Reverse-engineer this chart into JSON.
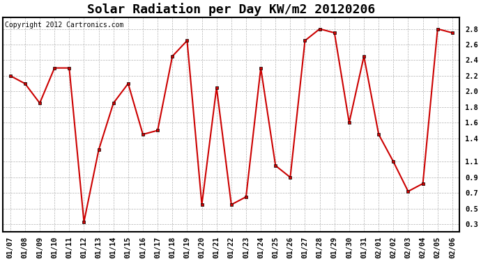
{
  "title": "Solar Radiation per Day KW/m2 20120206",
  "copyright": "Copyright 2012 Cartronics.com",
  "dates": [
    "01/07",
    "01/08",
    "01/09",
    "01/10",
    "01/11",
    "01/12",
    "01/13",
    "01/14",
    "01/15",
    "01/16",
    "01/17",
    "01/18",
    "01/19",
    "01/20",
    "01/21",
    "01/22",
    "01/23",
    "01/24",
    "01/25",
    "01/26",
    "01/27",
    "01/28",
    "01/29",
    "01/30",
    "01/31",
    "02/01",
    "02/02",
    "02/03",
    "02/04",
    "02/05",
    "02/06"
  ],
  "values": [
    2.2,
    2.1,
    1.85,
    2.3,
    2.3,
    0.33,
    1.25,
    1.85,
    2.1,
    1.45,
    1.5,
    2.45,
    2.65,
    0.55,
    2.05,
    0.55,
    0.65,
    2.3,
    1.05,
    0.9,
    2.65,
    2.8,
    2.75,
    1.6,
    2.45,
    1.45,
    1.1,
    0.72,
    0.82,
    2.8,
    2.75
  ],
  "line_color": "#cc0000",
  "marker": "s",
  "marker_size": 3,
  "bg_color": "#ffffff",
  "grid_color": "#aaaaaa",
  "yticks": [
    0.3,
    0.5,
    0.7,
    0.9,
    1.1,
    1.4,
    1.6,
    1.8,
    2.0,
    2.2,
    2.4,
    2.6,
    2.8
  ],
  "ylim": [
    0.2,
    2.95
  ],
  "title_fontsize": 13,
  "copyright_fontsize": 7,
  "tick_fontsize": 7.5
}
